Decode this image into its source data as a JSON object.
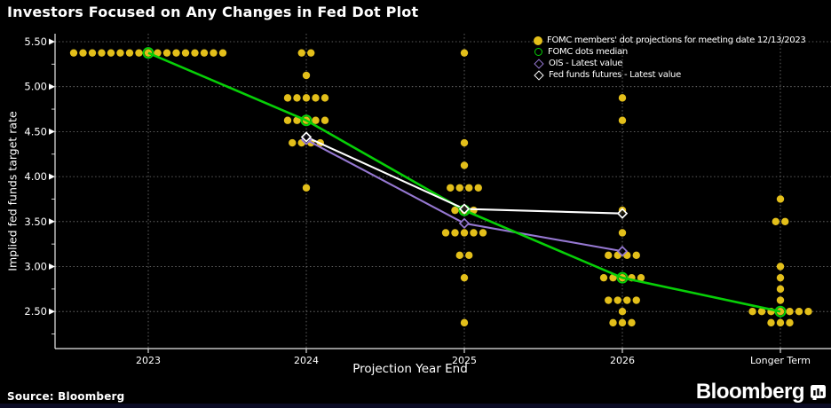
{
  "title": "Investors Focused on Any Changes in Fed Dot Plot",
  "source": "Source: Bloomberg",
  "brand": {
    "wordmark": "Bloomberg",
    "icon": "bloomberg-terminal-icon"
  },
  "colors": {
    "background": "#000000",
    "dots": "#E3BF1A",
    "median": "#07CF07",
    "ois": "#9678D2",
    "futures": "#FFFFFF",
    "grid": "#9a9a9a",
    "axis": "#e8e8e8",
    "text": "#FFFFFF",
    "bottom_strip": "#0B0B24"
  },
  "chart_data": {
    "type": "scatter",
    "title": "Investors Focused on Any Changes in Fed Dot Plot",
    "xlabel": "Projection Year End",
    "ylabel": "Implied fed funds target rate",
    "x_categories": [
      "2023",
      "2024",
      "2025",
      "2026",
      "Longer Term"
    ],
    "ylim": [
      2.1,
      5.6
    ],
    "grid": true,
    "legend_position": "top-right",
    "yticks": [
      {
        "label": "5.50",
        "value": 5.5
      },
      {
        "label": "5.00",
        "value": 5.0
      },
      {
        "label": "4.50",
        "value": 4.5
      },
      {
        "label": "4.00",
        "value": 4.0
      },
      {
        "label": "3.50",
        "value": 3.5
      },
      {
        "label": "3.00",
        "value": 3.0
      },
      {
        "label": "2.50",
        "value": 2.5
      }
    ],
    "legend": [
      {
        "label": "FOMC members' dot projections for meeting date 12/13/2023",
        "marker": "filled-circle",
        "color": "#E3BF1A"
      },
      {
        "label": "FOMC dots median",
        "marker": "open-circle",
        "color": "#07CF07"
      },
      {
        "label": "OIS - Latest value",
        "marker": "open-diamond",
        "color": "#9678D2"
      },
      {
        "label": "Fed funds futures - Latest value",
        "marker": "open-diamond",
        "color": "#FFFFFF"
      }
    ],
    "dot_projections": {
      "2023": [
        {
          "rate": 5.375,
          "count": 17
        }
      ],
      "2024": [
        {
          "rate": 5.375,
          "count": 2
        },
        {
          "rate": 5.125,
          "count": 1
        },
        {
          "rate": 4.875,
          "count": 5
        },
        {
          "rate": 4.625,
          "count": 5
        },
        {
          "rate": 4.375,
          "count": 4
        },
        {
          "rate": 3.875,
          "count": 1
        }
      ],
      "2025": [
        {
          "rate": 5.375,
          "count": 1
        },
        {
          "rate": 4.375,
          "count": 1
        },
        {
          "rate": 4.125,
          "count": 1
        },
        {
          "rate": 3.875,
          "count": 4
        },
        {
          "rate": 3.625,
          "count": 3
        },
        {
          "rate": 3.375,
          "count": 5
        },
        {
          "rate": 3.125,
          "count": 2
        },
        {
          "rate": 2.875,
          "count": 1
        },
        {
          "rate": 2.375,
          "count": 1
        }
      ],
      "2026": [
        {
          "rate": 4.875,
          "count": 1
        },
        {
          "rate": 4.625,
          "count": 1
        },
        {
          "rate": 3.625,
          "count": 1
        },
        {
          "rate": 3.375,
          "count": 1
        },
        {
          "rate": 3.125,
          "count": 4
        },
        {
          "rate": 2.875,
          "count": 5
        },
        {
          "rate": 2.625,
          "count": 4
        },
        {
          "rate": 2.5,
          "count": 1
        },
        {
          "rate": 2.375,
          "count": 3
        }
      ],
      "Longer Term": [
        {
          "rate": 3.75,
          "count": 1
        },
        {
          "rate": 3.5,
          "count": 2
        },
        {
          "rate": 3.0,
          "count": 1
        },
        {
          "rate": 2.875,
          "count": 1
        },
        {
          "rate": 2.75,
          "count": 1
        },
        {
          "rate": 2.625,
          "count": 1
        },
        {
          "rate": 2.5,
          "count": 7
        },
        {
          "rate": 2.375,
          "count": 3
        }
      ]
    },
    "series": [
      {
        "name": "FOMC dots median",
        "type": "line",
        "color": "#07CF07",
        "marker": "open-circle",
        "points": [
          [
            "2023",
            5.375
          ],
          [
            "2024",
            4.625
          ],
          [
            "2025",
            3.625
          ],
          [
            "2026",
            2.875
          ],
          [
            "Longer Term",
            2.5
          ]
        ]
      },
      {
        "name": "OIS - Latest value",
        "type": "line",
        "color": "#9678D2",
        "marker": "open-diamond",
        "points": [
          [
            "2024",
            4.41
          ],
          [
            "2025",
            3.48
          ],
          [
            "2026",
            3.17
          ]
        ]
      },
      {
        "name": "Fed funds futures - Latest value",
        "type": "line",
        "color": "#FFFFFF",
        "marker": "open-diamond",
        "points": [
          [
            "2024",
            4.44
          ],
          [
            "2025",
            3.64
          ],
          [
            "2026",
            3.59
          ]
        ]
      }
    ]
  }
}
